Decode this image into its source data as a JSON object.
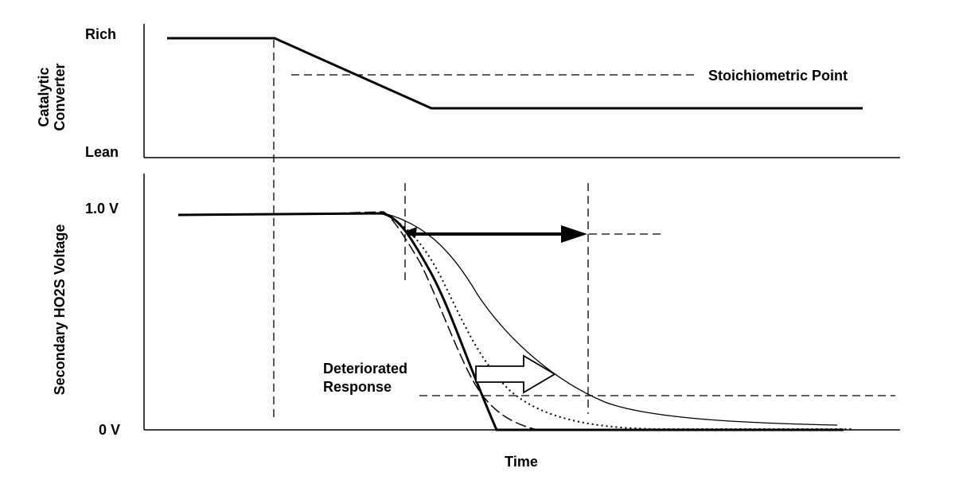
{
  "top_panel": {
    "y_label_line1": "Catalytic",
    "y_label_line2": "Converter",
    "tick_high": "Rich",
    "tick_low": "Lean",
    "reference_label": "Stoichiometric Point"
  },
  "bottom_panel": {
    "y_label": "Secondary HO2S Voltage",
    "tick_high": "1.0 V",
    "tick_low": "0 V",
    "annotation_line1": "Deteriorated",
    "annotation_line2": "Response",
    "x_label": "Time"
  },
  "colors": {
    "ink": "#000000",
    "background": "#ffffff"
  }
}
